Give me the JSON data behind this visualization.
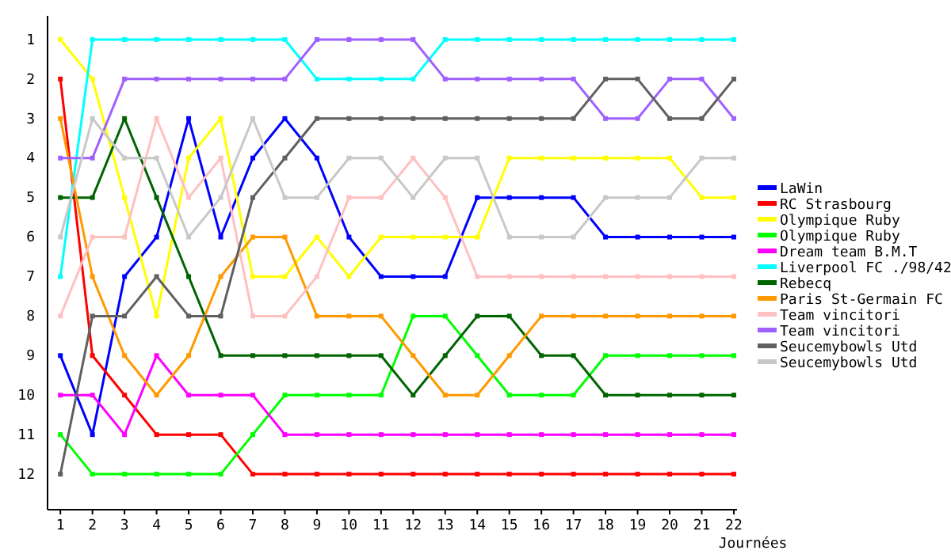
{
  "chart_data": {
    "type": "line",
    "xlabel": "Journées",
    "x": [
      1,
      2,
      3,
      4,
      5,
      6,
      7,
      8,
      9,
      10,
      11,
      12,
      13,
      14,
      15,
      16,
      17,
      18,
      19,
      20,
      21,
      22
    ],
    "xlim": [
      0.6,
      22.1
    ],
    "xticks": [
      1,
      2,
      3,
      4,
      5,
      6,
      7,
      8,
      9,
      10,
      11,
      12,
      13,
      14,
      15,
      16,
      17,
      18,
      19,
      20,
      21,
      22
    ],
    "ylim": [
      12.9,
      0.4
    ],
    "yticks": [
      1,
      2,
      3,
      4,
      5,
      6,
      7,
      8,
      9,
      10,
      11,
      12
    ],
    "grid": false,
    "legend": "right",
    "marker": "square",
    "line_style": "solid",
    "series": [
      {
        "name": "LaWin",
        "color": "#0000ff",
        "values": [
          9,
          11,
          7,
          6,
          3,
          6,
          4,
          3,
          4,
          6,
          7,
          7,
          7,
          5,
          5,
          5,
          5,
          6,
          6,
          6,
          6,
          6
        ]
      },
      {
        "name": "RC Strasbourg",
        "color": "#ff0000",
        "values": [
          2,
          9,
          10,
          11,
          11,
          11,
          12,
          12,
          12,
          12,
          12,
          12,
          12,
          12,
          12,
          12,
          12,
          12,
          12,
          12,
          12,
          12
        ]
      },
      {
        "name": "Olympique Ruby",
        "color": "#ffff00",
        "values": [
          1,
          2,
          5,
          8,
          4,
          3,
          7,
          7,
          6,
          7,
          6,
          6,
          6,
          6,
          4,
          4,
          4,
          4,
          4,
          4,
          5,
          5
        ]
      },
      {
        "name": "Olympique Ruby",
        "color": "#00ff00",
        "values": [
          11,
          12,
          12,
          12,
          12,
          12,
          11,
          10,
          10,
          10,
          10,
          8,
          8,
          9,
          10,
          10,
          10,
          9,
          9,
          9,
          9,
          9
        ]
      },
      {
        "name": "Dream team B.M.T",
        "color": "#ff00ff",
        "values": [
          10,
          10,
          11,
          9,
          10,
          10,
          10,
          11,
          11,
          11,
          11,
          11,
          11,
          11,
          11,
          11,
          11,
          11,
          11,
          11,
          11,
          11
        ]
      },
      {
        "name": "Liverpool FC ./98/42",
        "color": "#00ffff",
        "values": [
          7,
          1,
          1,
          1,
          1,
          1,
          1,
          1,
          2,
          2,
          2,
          2,
          1,
          1,
          1,
          1,
          1,
          1,
          1,
          1,
          1,
          1
        ]
      },
      {
        "name": "Rebecq",
        "color": "#006400",
        "values": [
          5,
          5,
          3,
          5,
          7,
          9,
          9,
          9,
          9,
          9,
          9,
          10,
          9,
          8,
          8,
          9,
          9,
          10,
          10,
          10,
          10,
          10
        ]
      },
      {
        "name": "Paris St-Germain FC",
        "color": "#ff9900",
        "values": [
          3,
          7,
          9,
          10,
          9,
          7,
          6,
          6,
          8,
          8,
          8,
          9,
          10,
          10,
          9,
          8,
          8,
          8,
          8,
          8,
          8,
          8
        ]
      },
      {
        "name": "Team vincitori",
        "color": "#ffc0c0",
        "values": [
          8,
          6,
          6,
          3,
          5,
          4,
          8,
          8,
          7,
          5,
          5,
          4,
          5,
          7,
          7,
          7,
          7,
          7,
          7,
          7,
          7,
          7
        ]
      },
      {
        "name": "Team vincitori",
        "color": "#a060ff",
        "values": [
          4,
          4,
          2,
          2,
          2,
          2,
          2,
          2,
          1,
          1,
          1,
          1,
          2,
          2,
          2,
          2,
          2,
          3,
          3,
          2,
          2,
          3
        ]
      },
      {
        "name": "Seucemybowls Utd",
        "color": "#606060",
        "values": [
          12,
          8,
          8,
          7,
          8,
          8,
          5,
          4,
          3,
          3,
          3,
          3,
          3,
          3,
          3,
          3,
          3,
          2,
          2,
          3,
          3,
          2
        ]
      },
      {
        "name": "Seucemybowls Utd",
        "color": "#c8c8c8",
        "values": [
          6,
          3,
          4,
          4,
          6,
          5,
          3,
          5,
          5,
          4,
          4,
          5,
          4,
          4,
          6,
          6,
          6,
          5,
          5,
          5,
          4,
          4
        ]
      }
    ]
  }
}
